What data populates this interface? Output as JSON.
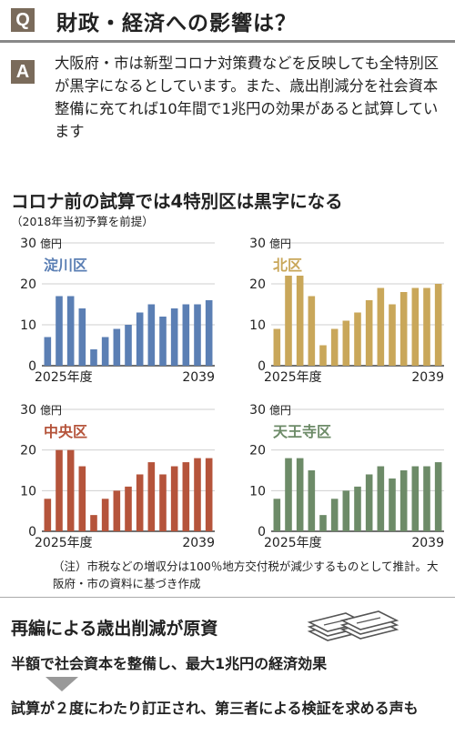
{
  "question": {
    "badge": "Q",
    "title": "財政・経済への影響は？"
  },
  "answer": {
    "badge": "A",
    "text": "大阪府・市は新型コロナ対策費などを反映しても全特別区が黒字になるとしています。また、歳出削減分を社会資本整備に充てれば10年間で1兆円の効果があると試算しています"
  },
  "section": {
    "title": "コロナ前の試算では4特別区は黒字になる",
    "subtitle": "（2018年当初予算を前提）"
  },
  "colors": {
    "badge": "#7a6b5b",
    "yodogawa": "#5b7fb4",
    "kita": "#c9a75a",
    "chuo": "#b5543b",
    "tennoji": "#6d8b68"
  },
  "chart_data": [
    {
      "type": "bar",
      "title": "淀川区",
      "unit": "億円",
      "x": [
        2025,
        2026,
        2027,
        2028,
        2029,
        2030,
        2031,
        2032,
        2033,
        2034,
        2035,
        2036,
        2037,
        2038,
        2039
      ],
      "values": [
        7,
        17,
        17,
        14,
        4,
        7,
        9,
        10,
        13,
        15,
        12,
        14,
        15,
        15,
        16
      ],
      "x_tick_labels": [
        "2025年度",
        "2039"
      ],
      "y_ticks": [
        0,
        10,
        20,
        30
      ],
      "ylim": [
        0,
        30
      ],
      "color": "#5b7fb4"
    },
    {
      "type": "bar",
      "title": "北区",
      "unit": "億円",
      "x": [
        2025,
        2026,
        2027,
        2028,
        2029,
        2030,
        2031,
        2032,
        2033,
        2034,
        2035,
        2036,
        2037,
        2038,
        2039
      ],
      "values": [
        9,
        22,
        22,
        17,
        5,
        9,
        11,
        13,
        16,
        19,
        15,
        18,
        19,
        19,
        20
      ],
      "x_tick_labels": [
        "2025年度",
        "2039"
      ],
      "y_ticks": [
        0,
        10,
        20,
        30
      ],
      "ylim": [
        0,
        30
      ],
      "color": "#c9a75a"
    },
    {
      "type": "bar",
      "title": "中央区",
      "unit": "億円",
      "x": [
        2025,
        2026,
        2027,
        2028,
        2029,
        2030,
        2031,
        2032,
        2033,
        2034,
        2035,
        2036,
        2037,
        2038,
        2039
      ],
      "values": [
        8,
        20,
        20,
        16,
        4,
        8,
        10,
        11,
        14,
        17,
        14,
        16,
        17,
        18,
        18
      ],
      "x_tick_labels": [
        "2025年度",
        "2039"
      ],
      "y_ticks": [
        0,
        10,
        20,
        30
      ],
      "ylim": [
        0,
        30
      ],
      "color": "#b5543b"
    },
    {
      "type": "bar",
      "title": "天王寺区",
      "unit": "億円",
      "x": [
        2025,
        2026,
        2027,
        2028,
        2029,
        2030,
        2031,
        2032,
        2033,
        2034,
        2035,
        2036,
        2037,
        2038,
        2039
      ],
      "values": [
        8,
        18,
        18,
        15,
        4,
        8,
        10,
        11,
        14,
        16,
        13,
        15,
        16,
        16,
        17
      ],
      "x_tick_labels": [
        "2025年度",
        "2039"
      ],
      "y_ticks": [
        0,
        10,
        20,
        30
      ],
      "ylim": [
        0,
        30
      ],
      "color": "#6d8b68"
    }
  ],
  "note": "（注）市税などの増収分は100％地方交付税が減少するものとして推計。大阪府・市の資料に基づき作成",
  "bottom": {
    "title": "再編による歳出削減が原資",
    "point1": "半額で社会資本を整備し、最大1兆円の経済効果",
    "point2": "試算が２度にわたり訂正され、第三者による検証を求める声も"
  }
}
